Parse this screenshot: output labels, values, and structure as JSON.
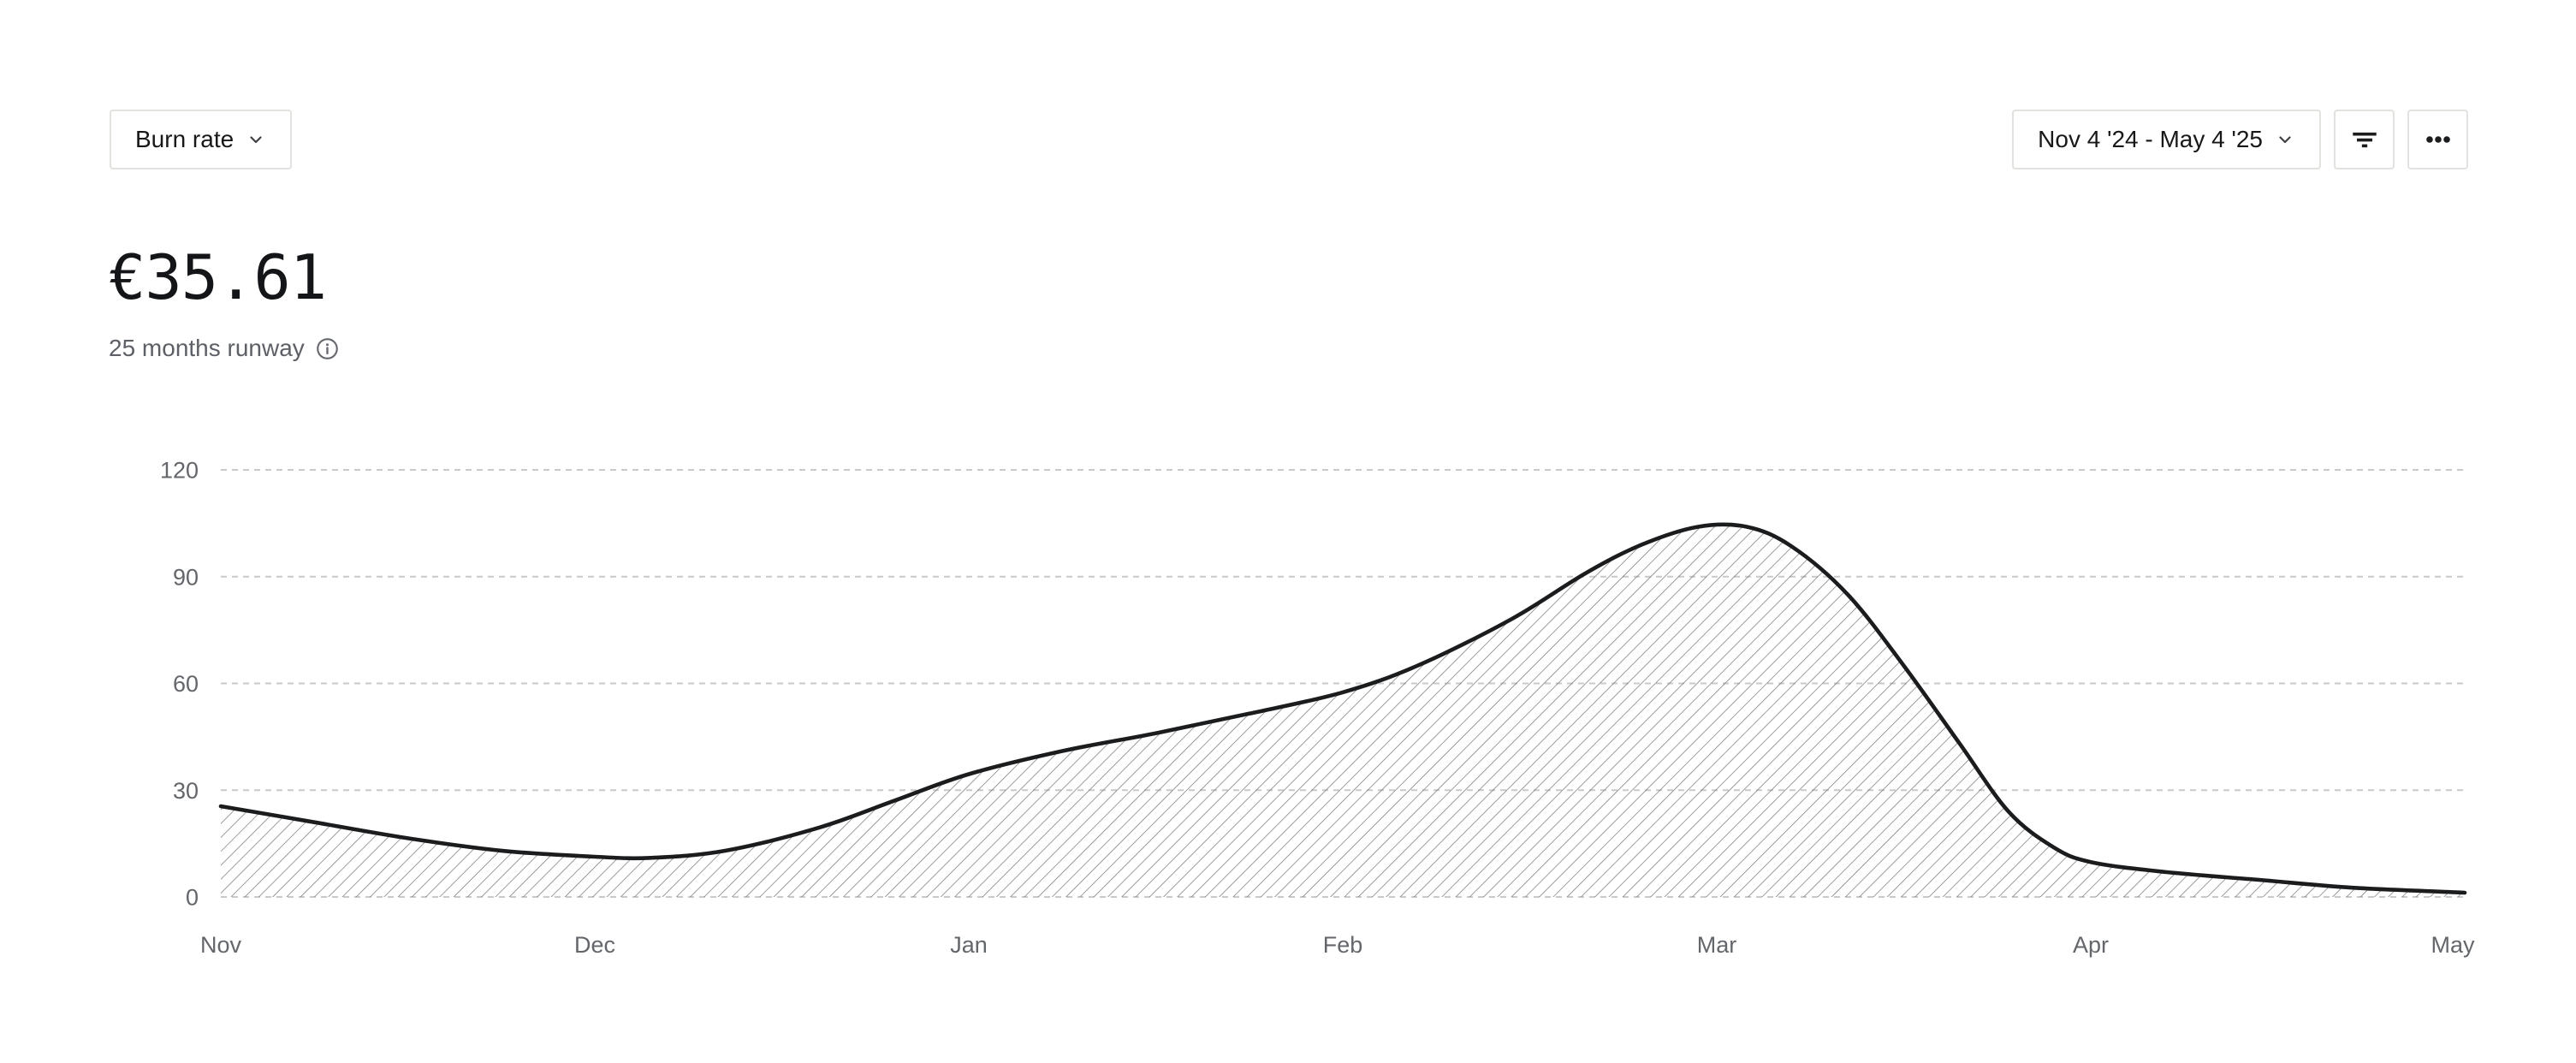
{
  "header": {
    "metric_selector": {
      "label": "Burn rate",
      "icon": "chevron-down"
    },
    "date_range_selector": {
      "label": "Nov 4 '24 - May 4 '25",
      "icon": "chevron-down"
    },
    "filter_button": {
      "icon": "filter-lines"
    },
    "more_button": {
      "icon": "ellipsis"
    }
  },
  "kpi": {
    "value": "€35.61",
    "subtitle": "25 months runway",
    "info_icon": "info-circle"
  },
  "colors": {
    "line": "#1b1c1e",
    "hatch": "#737373",
    "gridline": "#c9c9c9",
    "axis_label": "#63666b",
    "border": "#e2e2df",
    "muted_text": "#5d6066"
  },
  "chart_data": {
    "type": "area",
    "title": "Burn rate",
    "legend": "none",
    "x_axis": {
      "labels": [
        "Nov",
        "Dec",
        "Jan",
        "Feb",
        "Mar",
        "Apr",
        "May"
      ]
    },
    "y_axis": {
      "ticks": [
        0,
        30,
        60,
        90,
        120
      ],
      "range": [
        0,
        120
      ],
      "gridlines": "dashed-horizontal"
    },
    "style": {
      "line_color": "#1b1c1e",
      "fill_pattern": "diagonal-hatch",
      "hatch_color": "#737373",
      "gridline_color": "#c9c9c9"
    },
    "series": [
      {
        "name": "Burn rate",
        "unit": "€",
        "points": [
          [
            0.0,
            25.5
          ],
          [
            0.25,
            21.0
          ],
          [
            0.5,
            16.5
          ],
          [
            0.75,
            13.0
          ],
          [
            1.0,
            11.3
          ],
          [
            1.15,
            11.0
          ],
          [
            1.35,
            13.0
          ],
          [
            1.6,
            19.5
          ],
          [
            1.8,
            27.0
          ],
          [
            2.0,
            34.5
          ],
          [
            2.25,
            41.0
          ],
          [
            2.5,
            46.0
          ],
          [
            2.75,
            51.5
          ],
          [
            3.0,
            57.5
          ],
          [
            3.2,
            65.0
          ],
          [
            3.45,
            78.0
          ],
          [
            3.65,
            91.0
          ],
          [
            3.8,
            99.0
          ],
          [
            3.95,
            104.0
          ],
          [
            4.08,
            104.0
          ],
          [
            4.2,
            98.5
          ],
          [
            4.35,
            85.0
          ],
          [
            4.5,
            65.0
          ],
          [
            4.65,
            43.0
          ],
          [
            4.78,
            24.0
          ],
          [
            4.9,
            14.0
          ],
          [
            5.0,
            9.8
          ],
          [
            5.2,
            7.0
          ],
          [
            5.45,
            4.8
          ],
          [
            5.7,
            2.6
          ],
          [
            6.0,
            1.2
          ]
        ]
      }
    ]
  }
}
